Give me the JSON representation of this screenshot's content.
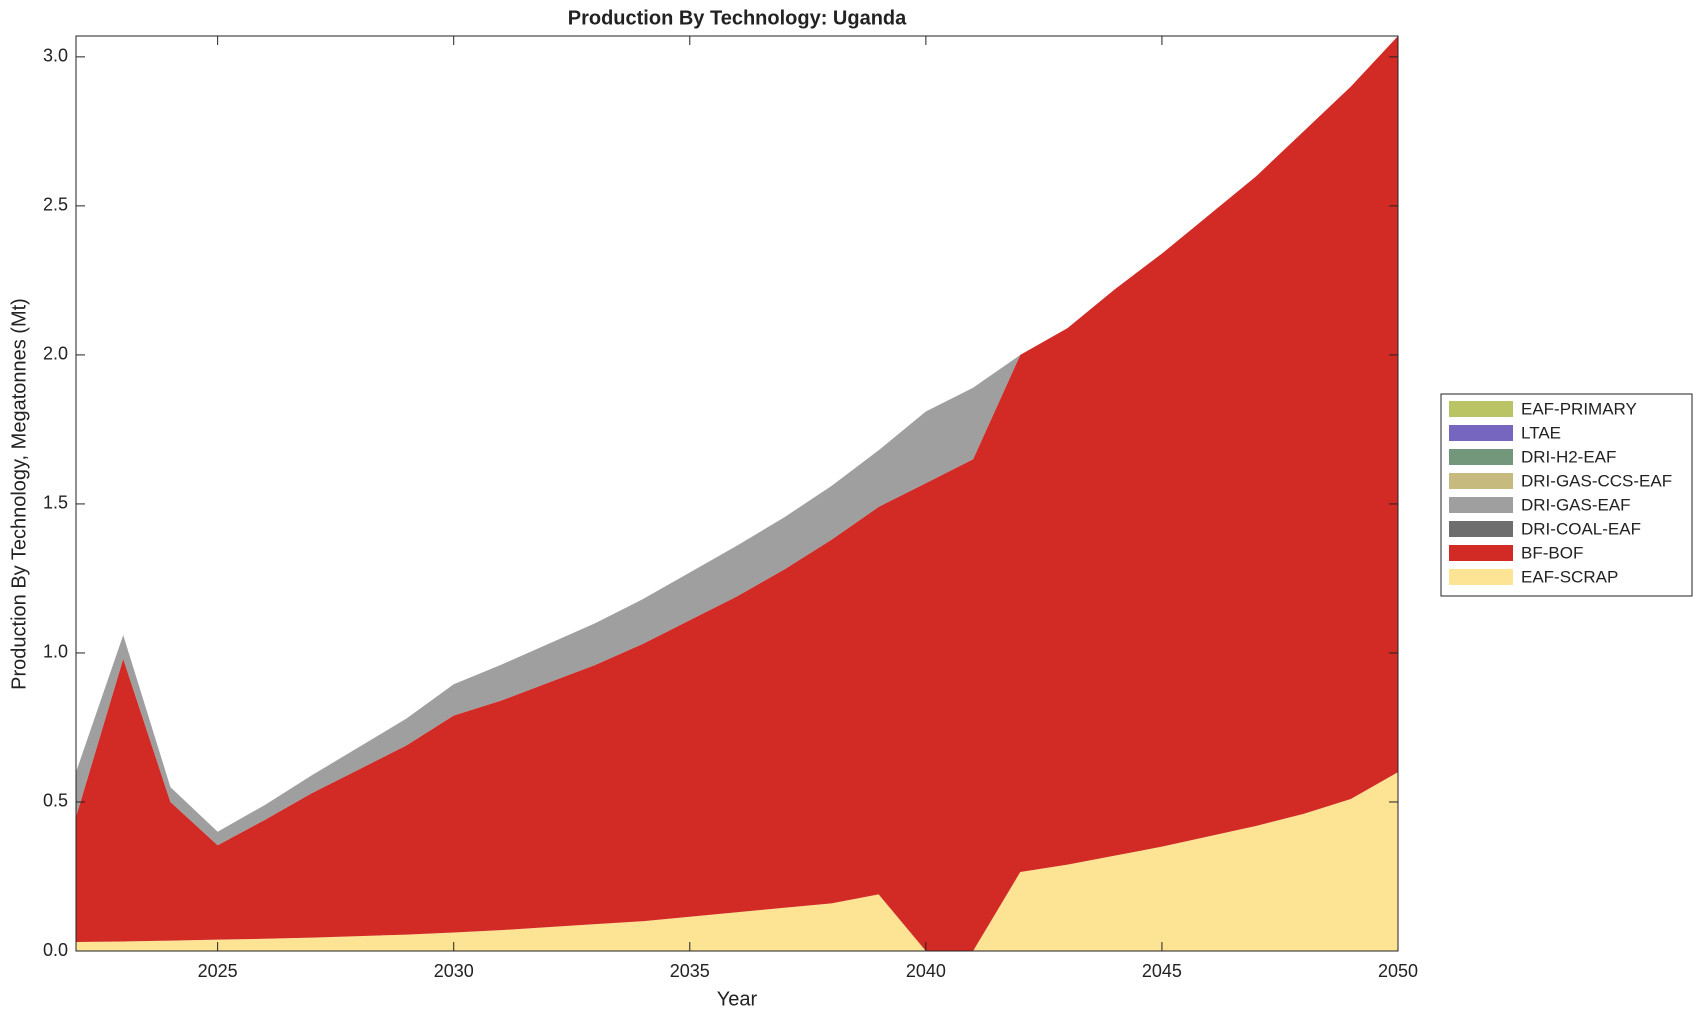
{
  "chart_data": {
    "type": "stacked-area",
    "title": "Production By Technology: Uganda",
    "xlabel": "Year",
    "ylabel": "Production By Technology, Megatonnes (Mt)",
    "x": [
      2022,
      2023,
      2024,
      2025,
      2026,
      2027,
      2028,
      2029,
      2030,
      2031,
      2032,
      2033,
      2034,
      2035,
      2036,
      2037,
      2038,
      2039,
      2040,
      2041,
      2042,
      2043,
      2044,
      2045,
      2046,
      2047,
      2048,
      2049,
      2050
    ],
    "xlim": [
      2022,
      2050
    ],
    "xticks": [
      2025,
      2030,
      2035,
      2040,
      2045,
      2050
    ],
    "ylim": [
      0,
      3.07
    ],
    "yticks": [
      {
        "value": 0,
        "label": "0.0"
      },
      0.5,
      {
        "value": 1,
        "label": "1.0"
      },
      1.5,
      {
        "value": 2,
        "label": "2.0"
      },
      2.5,
      {
        "value": 3,
        "label": "3.0"
      }
    ],
    "legend": "right",
    "series": [
      {
        "name": "EAF-SCRAP",
        "color": "#fde394",
        "values": [
          0.03,
          0.032,
          0.035,
          0.038,
          0.041,
          0.045,
          0.05,
          0.055,
          0.062,
          0.07,
          0.08,
          0.09,
          0.1,
          0.115,
          0.13,
          0.145,
          0.16,
          0.19,
          0,
          0,
          0.265,
          0.29,
          0.32,
          0.35,
          0.385,
          0.42,
          0.46,
          0.51,
          0.6
        ]
      },
      {
        "name": "BF-BOF",
        "color": "#d22b26",
        "values": [
          0.42,
          0.948,
          0.465,
          0.317,
          0.399,
          0.485,
          0.56,
          0.635,
          0.728,
          0.77,
          0.82,
          0.87,
          0.93,
          0.995,
          1.06,
          1.135,
          1.22,
          1.3,
          1.57,
          1.65,
          1.735,
          1.8,
          1.9,
          1.99,
          2.085,
          2.18,
          2.29,
          2.39,
          2.47
        ]
      },
      {
        "name": "DRI-COAL-EAF",
        "color": "#6e6e6e",
        "values": [
          0,
          0,
          0,
          0,
          0,
          0,
          0,
          0,
          0,
          0,
          0,
          0,
          0,
          0,
          0,
          0,
          0,
          0,
          0,
          0,
          0,
          0,
          0,
          0,
          0,
          0,
          0,
          0,
          0
        ]
      },
      {
        "name": "DRI-GAS-EAF",
        "color": "#9f9f9f",
        "values": [
          0.15,
          0.08,
          0.05,
          0.045,
          0.05,
          0.06,
          0.075,
          0.09,
          0.105,
          0.12,
          0.13,
          0.14,
          0.15,
          0.16,
          0.17,
          0.175,
          0.18,
          0.19,
          0.24,
          0.24,
          0,
          0,
          0,
          0,
          0,
          0,
          0,
          0,
          0
        ]
      },
      {
        "name": "DRI-GAS-CCS-EAF",
        "color": "#c6ba7e",
        "values": [
          0,
          0,
          0,
          0,
          0,
          0,
          0,
          0,
          0,
          0,
          0,
          0,
          0,
          0,
          0,
          0,
          0,
          0,
          0,
          0,
          0,
          0,
          0,
          0,
          0,
          0,
          0,
          0,
          0
        ]
      },
      {
        "name": "DRI-H2-EAF",
        "color": "#73977a",
        "values": [
          0,
          0,
          0,
          0,
          0,
          0,
          0,
          0,
          0,
          0,
          0,
          0,
          0,
          0,
          0,
          0,
          0,
          0,
          0,
          0,
          0,
          0,
          0,
          0,
          0,
          0,
          0,
          0,
          0
        ]
      },
      {
        "name": "LTAE",
        "color": "#7766c0",
        "values": [
          0,
          0,
          0,
          0,
          0,
          0,
          0,
          0,
          0,
          0,
          0,
          0,
          0,
          0,
          0,
          0,
          0,
          0,
          0,
          0,
          0,
          0,
          0,
          0,
          0,
          0,
          0,
          0,
          0
        ]
      },
      {
        "name": "EAF-PRIMARY",
        "color": "#bac465",
        "values": [
          0,
          0,
          0,
          0,
          0,
          0,
          0,
          0,
          0,
          0,
          0,
          0,
          0,
          0,
          0,
          0,
          0,
          0,
          0,
          0,
          0,
          0,
          0,
          0,
          0,
          0,
          0,
          0,
          0
        ]
      }
    ]
  }
}
